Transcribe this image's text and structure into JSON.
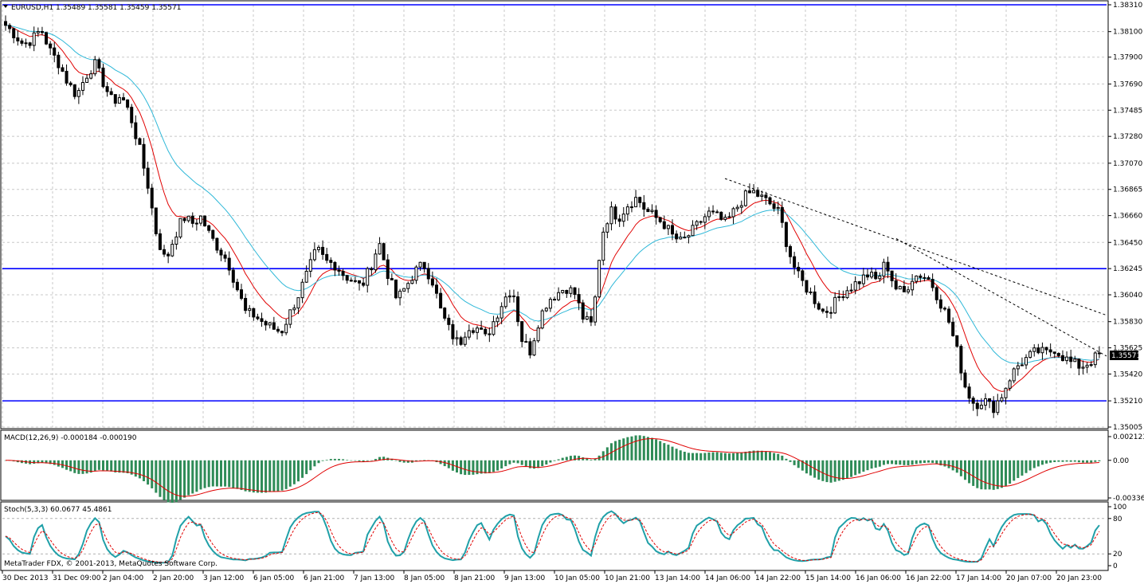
{
  "chart_data": {
    "type": "candlestick",
    "symbol_info": "EURUSD,H1  1.35489 1.35581 1.35459 1.35571",
    "current_price_label": "1.35571",
    "price_axis": {
      "ylim": [
        1.35005,
        1.3831
      ],
      "ticks": [
        "1.38310",
        "1.38100",
        "1.37900",
        "1.37690",
        "1.37485",
        "1.37280",
        "1.37070",
        "1.36865",
        "1.36660",
        "1.36450",
        "1.36245",
        "1.36040",
        "1.35830",
        "1.35625",
        "1.35420",
        "1.35210",
        "1.35005"
      ]
    },
    "x_labels": [
      "30 Dec 2013",
      "31 Dec 09:00",
      "2 Jan 04:00",
      "2 Jan 20:00",
      "3 Jan 12:00",
      "6 Jan 05:00",
      "6 Jan 21:00",
      "7 Jan 13:00",
      "8 Jan 05:00",
      "8 Jan 21:00",
      "9 Jan 13:00",
      "10 Jan 05:00",
      "10 Jan 21:00",
      "13 Jan 14:00",
      "14 Jan 06:00",
      "14 Jan 22:00",
      "15 Jan 14:00",
      "16 Jan 06:00",
      "16 Jan 22:00",
      "17 Jan 14:00",
      "20 Jan 07:00",
      "20 Jan 23:00"
    ],
    "horizontal_levels": [
      1.3831,
      1.36245,
      1.3521
    ],
    "price_path": [
      1.3815,
      1.3808,
      1.38,
      1.3804,
      1.3812,
      1.3795,
      1.3785,
      1.377,
      1.376,
      1.3775,
      1.3785,
      1.377,
      1.3755,
      1.376,
      1.3745,
      1.372,
      1.369,
      1.365,
      1.363,
      1.365,
      1.3665,
      1.366,
      1.3665,
      1.365,
      1.364,
      1.363,
      1.361,
      1.359,
      1.3588,
      1.3582,
      1.3578,
      1.3575,
      1.359,
      1.3605,
      1.3622,
      1.364,
      1.363,
      1.3628,
      1.362,
      1.3615,
      1.361,
      1.3625,
      1.3645,
      1.362,
      1.36,
      1.361,
      1.3622,
      1.3628,
      1.3615,
      1.359,
      1.3575,
      1.3565,
      1.358,
      1.3578,
      1.357,
      1.3585,
      1.36,
      1.361,
      1.357,
      1.356,
      1.3585,
      1.36,
      1.3605,
      1.361,
      1.3605,
      1.3585,
      1.358,
      1.365,
      1.367,
      1.3665,
      1.3675,
      1.368,
      1.367,
      1.3665,
      1.366,
      1.365,
      1.3645,
      1.3652,
      1.366,
      1.3668,
      1.3665,
      1.366,
      1.367,
      1.368,
      1.3685,
      1.368,
      1.3675,
      1.3668,
      1.364,
      1.362,
      1.361,
      1.36,
      1.359,
      1.3595,
      1.3605,
      1.361,
      1.3615,
      1.362,
      1.3615,
      1.363,
      1.361,
      1.3605,
      1.3618,
      1.362,
      1.3615,
      1.36,
      1.3585,
      1.356,
      1.353,
      1.3518,
      1.3522,
      1.3515,
      1.3525,
      1.354,
      1.355,
      1.3555,
      1.356,
      1.3558,
      1.3562,
      1.3555,
      1.355,
      1.3548,
      1.3552,
      1.3557
    ],
    "moving_averages": [
      {
        "name": "fast"
      },
      {
        "name": "slow"
      }
    ],
    "macd": {
      "label": "MACD(12,26,9) -0.000184 -0.000190",
      "ticks": [
        "0.002123",
        "0.00",
        "-0.003366"
      ]
    },
    "stochastic": {
      "label": "Stoch(5,3,3) 60.0677 45.4861",
      "ticks": [
        "100",
        "80",
        "20",
        "0"
      ]
    },
    "copyright": "MetaTrader FDX, © 2001-2013, MetaQuotes Software Corp."
  },
  "colors": {
    "level": "#0000ff",
    "ma_fast": "#e00000",
    "ma_slow": "#2fb8d8",
    "macd_bar": "#2e8b57",
    "stoch_main": "#20a0a8"
  }
}
